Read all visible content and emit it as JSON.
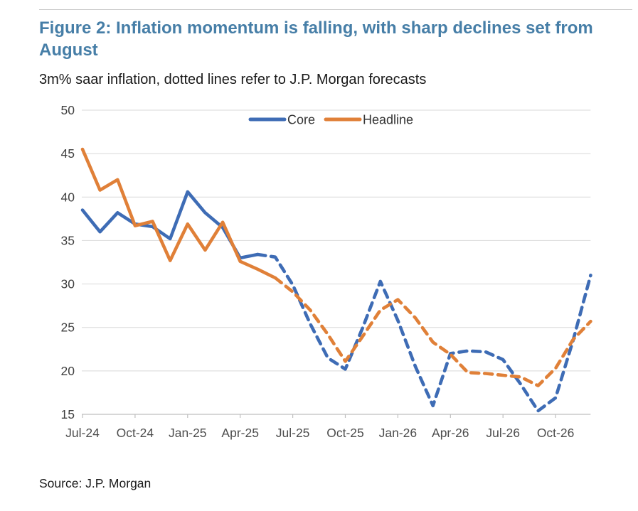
{
  "header": {
    "title": "Figure 2: Inflation momentum is falling, with sharp declines set from August",
    "subtitle": "3m% saar inflation, dotted lines refer to J.P. Morgan forecasts"
  },
  "footer": {
    "source": "Source: J.P. Morgan"
  },
  "colors": {
    "title_accent": "#467EA7",
    "gridline": "#D9D9D9",
    "axis_line": "#BFBFBF",
    "core_blue": "#3E6CB5",
    "headline_orange": "#E08038"
  },
  "chart_data": {
    "type": "line",
    "title": "Figure 2: Inflation momentum is falling, with sharp declines set from August",
    "subtitle": "3m% saar inflation, dotted lines refer to J.P. Morgan forecasts",
    "ylabel": "",
    "xlabel": "",
    "ylim": [
      15,
      50
    ],
    "yticks": [
      15,
      20,
      25,
      30,
      35,
      40,
      45,
      50
    ],
    "grid": "horizontal",
    "legend_position": "top-center",
    "x_tick_labels": [
      "Jul-24",
      "Oct-24",
      "Jan-25",
      "Apr-25",
      "Jul-25",
      "Oct-25",
      "Jan-26",
      "Apr-26",
      "Jul-26",
      "Oct-26"
    ],
    "x_monthly": [
      "Jul-24",
      "Aug-24",
      "Sep-24",
      "Oct-24",
      "Nov-24",
      "Dec-24",
      "Jan-25",
      "Feb-25",
      "Mar-25",
      "Apr-25",
      "May-25",
      "Jun-25",
      "Jul-25",
      "Aug-25",
      "Sep-25",
      "Oct-25",
      "Nov-25",
      "Dec-25",
      "Jan-26",
      "Feb-26",
      "Mar-26",
      "Apr-26",
      "May-26",
      "Jun-26",
      "Jul-26",
      "Aug-26",
      "Sep-26",
      "Oct-26",
      "Nov-26",
      "Dec-26"
    ],
    "dotted_meaning": "dotted line segments are J.P. Morgan forecasts",
    "series": [
      {
        "name": "Core",
        "color": "#3E6CB5",
        "solid_until_index": 10,
        "values": [
          38.5,
          36.0,
          38.2,
          36.9,
          36.6,
          35.2,
          40.6,
          38.2,
          36.5,
          33.0,
          33.4,
          33.1,
          29.9,
          25.4,
          21.5,
          20.2,
          25.0,
          30.3,
          25.8,
          20.5,
          16.0,
          22.0,
          22.3,
          22.2,
          21.3,
          18.5,
          15.4,
          16.9,
          23.5,
          31.0
        ]
      },
      {
        "name": "Headline",
        "color": "#E08038",
        "solid_until_index": 11,
        "values": [
          45.5,
          40.8,
          42.0,
          36.7,
          37.2,
          32.7,
          36.9,
          33.9,
          37.1,
          32.6,
          31.7,
          30.7,
          29.1,
          27.0,
          24.2,
          21.1,
          24.0,
          27.0,
          28.2,
          26.1,
          23.3,
          21.9,
          19.8,
          19.7,
          19.5,
          19.3,
          18.3,
          20.3,
          23.6,
          25.7
        ]
      }
    ]
  }
}
